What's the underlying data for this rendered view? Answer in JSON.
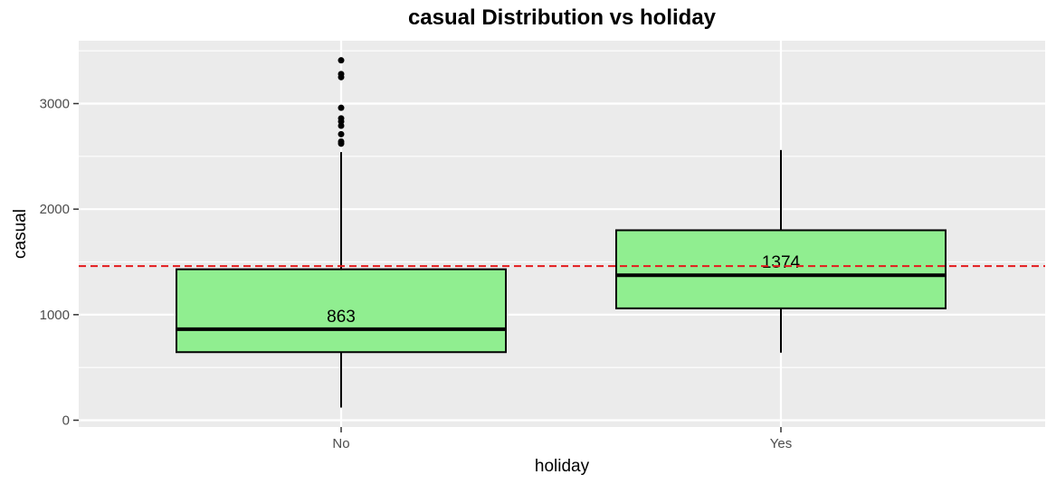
{
  "chart_data": {
    "type": "boxplot",
    "title": "casual  Distribution vs  holiday",
    "xlabel": "holiday",
    "ylabel": "casual",
    "categories": [
      "No",
      "Yes"
    ],
    "ylim": [
      -50,
      3500
    ],
    "yticks": [
      0,
      1000,
      2000,
      3000
    ],
    "grid": true,
    "legend": "none",
    "reference_line": {
      "value": 1460,
      "style": "dashed",
      "color": "#e31a1c"
    },
    "boxes": [
      {
        "category": "No",
        "whisker_low": 120,
        "q1": 645,
        "median": 863,
        "q3": 1430,
        "whisker_high": 2540,
        "median_label": "863",
        "outliers": [
          2620,
          2640,
          2710,
          2790,
          2830,
          2860,
          2960,
          3250,
          3280,
          3410
        ]
      },
      {
        "category": "Yes",
        "whisker_low": 640,
        "q1": 1060,
        "median": 1374,
        "q3": 1800,
        "whisker_high": 2560,
        "median_label": "1374",
        "outliers": []
      }
    ],
    "colors": {
      "box_fill": "#90ee90",
      "panel_bg": "#ebebeb",
      "grid": "#ffffff",
      "outline": "#000000"
    }
  }
}
